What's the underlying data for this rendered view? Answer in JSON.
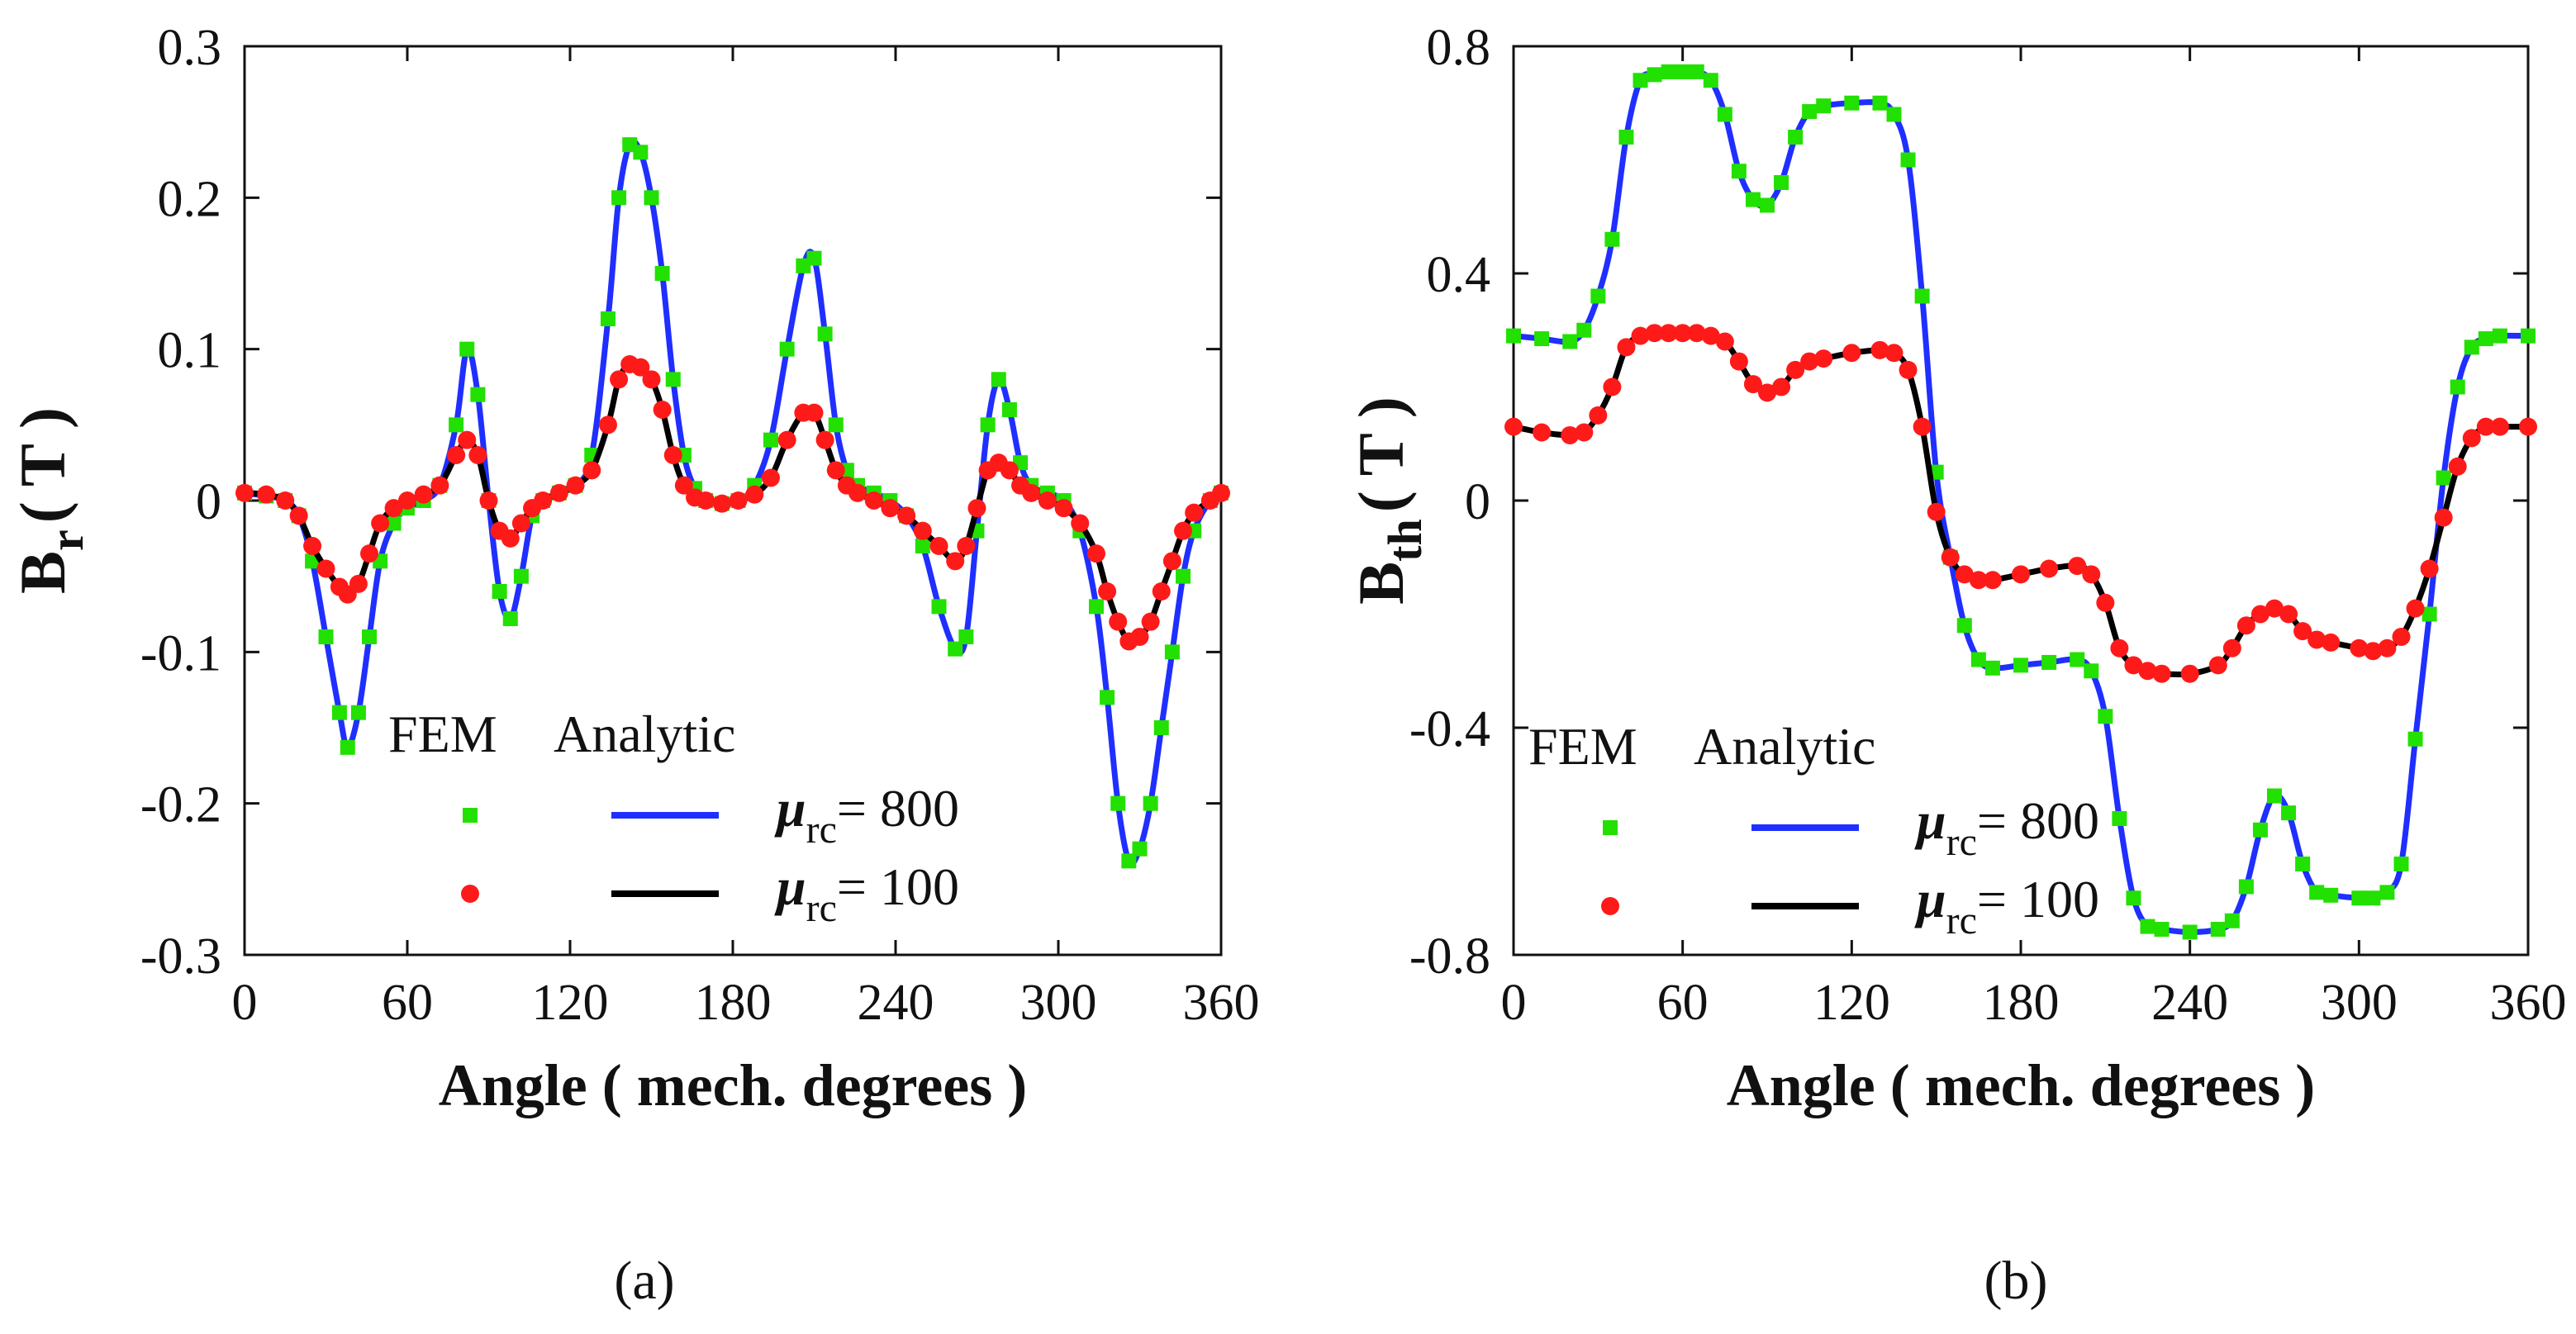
{
  "colors": {
    "fem_800": "#22e000",
    "fem_100": "#ff1a1a",
    "analytic_800": "#1f2fff",
    "analytic_100": "#000000",
    "axis": "#111111"
  },
  "chart_data": [
    {
      "type": "line",
      "panel": "a",
      "caption": "(a)",
      "xlabel": "Angle ( mech. degrees )",
      "ylabel": "B",
      "ylabel_sub": "r",
      "ylabel_unit": "( T )",
      "xlim": [
        0,
        360
      ],
      "ylim": [
        -0.3,
        0.3
      ],
      "xticks": [
        0,
        60,
        120,
        180,
        240,
        300,
        360
      ],
      "xtick_labels": [
        "0",
        "60",
        "120",
        "180",
        "240",
        "300",
        "360"
      ],
      "yticks": [
        -0.3,
        -0.2,
        -0.1,
        0,
        0.1,
        0.2,
        0.3
      ],
      "ytick_labels": [
        "-0.3",
        "-0.2",
        "-0.1",
        "0",
        "0.1",
        "0.2",
        "0.3"
      ],
      "legend": {
        "placement": "bottom-center",
        "fem_header": "FEM",
        "analytic_header": "Analytic",
        "entries": [
          {
            "mu": "μ",
            "sub": "rc",
            "text": "= 800",
            "fem": "fem_800",
            "analytic": "analytic_800"
          },
          {
            "mu": "μ",
            "sub": "rc",
            "text": "= 100",
            "fem": "fem_100",
            "analytic": "analytic_100"
          }
        ]
      },
      "series": [
        {
          "name": "mu_rc = 800",
          "key": "800",
          "x": [
            0,
            8,
            15,
            20,
            25,
            30,
            35,
            38,
            42,
            46,
            50,
            55,
            60,
            66,
            72,
            78,
            82,
            86,
            90,
            94,
            98,
            102,
            106,
            110,
            116,
            122,
            128,
            134,
            138,
            142,
            146,
            150,
            154,
            158,
            162,
            166,
            170,
            176,
            182,
            188,
            194,
            200,
            206,
            210,
            214,
            218,
            222,
            226,
            232,
            238,
            244,
            250,
            256,
            262,
            266,
            270,
            274,
            278,
            282,
            286,
            290,
            296,
            302,
            308,
            314,
            318,
            322,
            326,
            330,
            334,
            338,
            342,
            346,
            350,
            356,
            360
          ],
          "y": [
            0.005,
            0.003,
            0.0,
            -0.01,
            -0.04,
            -0.09,
            -0.14,
            -0.163,
            -0.14,
            -0.09,
            -0.04,
            -0.015,
            -0.005,
            0.0,
            0.01,
            0.05,
            0.1,
            0.07,
            0.0,
            -0.06,
            -0.078,
            -0.05,
            -0.01,
            0.0,
            0.005,
            0.01,
            0.03,
            0.12,
            0.2,
            0.235,
            0.23,
            0.2,
            0.15,
            0.08,
            0.03,
            0.008,
            0.0,
            -0.002,
            0.0,
            0.01,
            0.04,
            0.1,
            0.155,
            0.16,
            0.11,
            0.05,
            0.02,
            0.01,
            0.005,
            0.0,
            -0.01,
            -0.03,
            -0.07,
            -0.098,
            -0.09,
            -0.02,
            0.05,
            0.08,
            0.06,
            0.025,
            0.01,
            0.005,
            0.0,
            -0.02,
            -0.07,
            -0.13,
            -0.2,
            -0.238,
            -0.23,
            -0.2,
            -0.15,
            -0.1,
            -0.05,
            -0.02,
            0.0,
            0.005
          ]
        },
        {
          "name": "mu_rc = 100",
          "key": "100",
          "x": [
            0,
            8,
            15,
            20,
            25,
            30,
            35,
            38,
            42,
            46,
            50,
            55,
            60,
            66,
            72,
            78,
            82,
            86,
            90,
            94,
            98,
            102,
            106,
            110,
            116,
            122,
            128,
            134,
            138,
            142,
            146,
            150,
            154,
            158,
            162,
            166,
            170,
            176,
            182,
            188,
            194,
            200,
            206,
            210,
            214,
            218,
            222,
            226,
            232,
            238,
            244,
            250,
            256,
            262,
            266,
            270,
            274,
            278,
            282,
            286,
            290,
            296,
            302,
            308,
            314,
            318,
            322,
            326,
            330,
            334,
            338,
            342,
            346,
            350,
            356,
            360
          ],
          "y": [
            0.005,
            0.004,
            0.0,
            -0.01,
            -0.03,
            -0.045,
            -0.057,
            -0.062,
            -0.055,
            -0.035,
            -0.015,
            -0.005,
            0.0,
            0.004,
            0.01,
            0.03,
            0.04,
            0.03,
            0.0,
            -0.02,
            -0.025,
            -0.015,
            -0.005,
            0.0,
            0.005,
            0.01,
            0.02,
            0.05,
            0.08,
            0.09,
            0.088,
            0.08,
            0.06,
            0.03,
            0.01,
            0.002,
            0.0,
            -0.002,
            0.0,
            0.004,
            0.015,
            0.04,
            0.058,
            0.058,
            0.04,
            0.02,
            0.01,
            0.005,
            0.0,
            -0.005,
            -0.01,
            -0.02,
            -0.03,
            -0.04,
            -0.03,
            -0.005,
            0.02,
            0.025,
            0.02,
            0.01,
            0.005,
            0.0,
            -0.005,
            -0.015,
            -0.035,
            -0.06,
            -0.08,
            -0.093,
            -0.09,
            -0.08,
            -0.06,
            -0.04,
            -0.02,
            -0.008,
            0.0,
            0.005
          ]
        }
      ]
    },
    {
      "type": "line",
      "panel": "b",
      "caption": "(b)",
      "xlabel": "Angle ( mech. degrees )",
      "ylabel": "B",
      "ylabel_sub": "th",
      "ylabel_unit": "( T )",
      "xlim": [
        0,
        360
      ],
      "ylim": [
        -0.8,
        0.8
      ],
      "xticks": [
        0,
        60,
        120,
        180,
        240,
        300,
        360
      ],
      "xtick_labels": [
        "0",
        "60",
        "120",
        "180",
        "240",
        "300",
        "360"
      ],
      "yticks": [
        -0.8,
        -0.4,
        0,
        0.4,
        0.8
      ],
      "ytick_labels": [
        "-0.8",
        "-0.4",
        "0",
        "0.4",
        "0.8"
      ],
      "legend": {
        "placement": "bottom-left",
        "fem_header": "FEM",
        "analytic_header": "Analytic",
        "entries": [
          {
            "mu": "μ",
            "sub": "rc",
            "text": "= 800",
            "fem": "fem_800",
            "analytic": "analytic_800"
          },
          {
            "mu": "μ",
            "sub": "rc",
            "text": "= 100",
            "fem": "fem_100",
            "analytic": "analytic_100"
          }
        ]
      },
      "series": [
        {
          "name": "mu_rc = 800",
          "key": "800",
          "x": [
            0,
            10,
            20,
            25,
            30,
            35,
            40,
            45,
            50,
            55,
            60,
            65,
            70,
            75,
            80,
            85,
            90,
            95,
            100,
            105,
            110,
            120,
            130,
            135,
            140,
            145,
            150,
            155,
            160,
            165,
            170,
            180,
            190,
            200,
            205,
            210,
            215,
            220,
            225,
            230,
            240,
            250,
            255,
            260,
            265,
            270,
            275,
            280,
            285,
            290,
            300,
            305,
            310,
            315,
            320,
            325,
            330,
            335,
            340,
            345,
            350,
            360
          ],
          "y": [
            0.29,
            0.285,
            0.28,
            0.3,
            0.36,
            0.46,
            0.64,
            0.74,
            0.75,
            0.755,
            0.755,
            0.755,
            0.74,
            0.68,
            0.58,
            0.53,
            0.52,
            0.56,
            0.64,
            0.685,
            0.695,
            0.7,
            0.7,
            0.68,
            0.6,
            0.36,
            0.05,
            -0.1,
            -0.22,
            -0.28,
            -0.295,
            -0.29,
            -0.285,
            -0.28,
            -0.3,
            -0.38,
            -0.56,
            -0.7,
            -0.75,
            -0.755,
            -0.76,
            -0.755,
            -0.74,
            -0.68,
            -0.58,
            -0.52,
            -0.55,
            -0.64,
            -0.69,
            -0.695,
            -0.7,
            -0.7,
            -0.69,
            -0.64,
            -0.42,
            -0.2,
            0.04,
            0.2,
            0.27,
            0.285,
            0.29,
            0.29
          ]
        },
        {
          "name": "mu_rc = 100",
          "key": "100",
          "x": [
            0,
            10,
            20,
            25,
            30,
            35,
            40,
            45,
            50,
            55,
            60,
            65,
            70,
            75,
            80,
            85,
            90,
            95,
            100,
            105,
            110,
            120,
            130,
            135,
            140,
            145,
            150,
            155,
            160,
            165,
            170,
            180,
            190,
            200,
            205,
            210,
            215,
            220,
            225,
            230,
            240,
            250,
            255,
            260,
            265,
            270,
            275,
            280,
            285,
            290,
            300,
            305,
            310,
            315,
            320,
            325,
            330,
            335,
            340,
            345,
            350,
            360
          ],
          "y": [
            0.13,
            0.12,
            0.115,
            0.12,
            0.15,
            0.2,
            0.27,
            0.29,
            0.295,
            0.295,
            0.295,
            0.295,
            0.29,
            0.28,
            0.245,
            0.205,
            0.19,
            0.2,
            0.23,
            0.245,
            0.25,
            0.26,
            0.265,
            0.26,
            0.23,
            0.13,
            -0.02,
            -0.1,
            -0.13,
            -0.14,
            -0.14,
            -0.13,
            -0.12,
            -0.115,
            -0.13,
            -0.18,
            -0.26,
            -0.29,
            -0.3,
            -0.305,
            -0.305,
            -0.29,
            -0.26,
            -0.22,
            -0.2,
            -0.19,
            -0.2,
            -0.23,
            -0.245,
            -0.25,
            -0.26,
            -0.265,
            -0.26,
            -0.24,
            -0.19,
            -0.12,
            -0.03,
            0.06,
            0.11,
            0.13,
            0.13,
            0.13
          ]
        }
      ]
    }
  ]
}
